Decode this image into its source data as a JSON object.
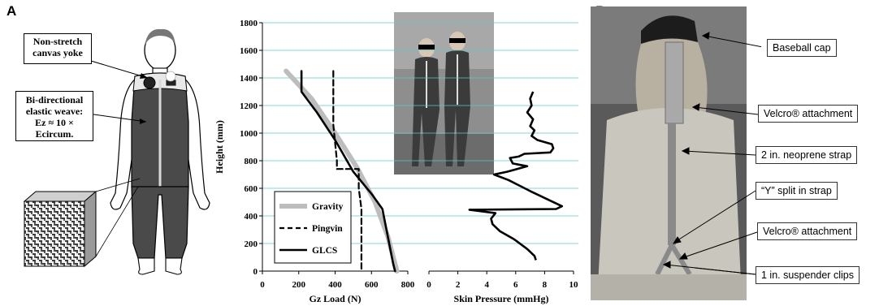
{
  "panels": {
    "a_label": "A",
    "b_label": "B"
  },
  "suit_callouts": {
    "yoke": "Non-stretch canvas yoke",
    "weave_line1": "Bi-directional",
    "weave_line2": "elastic weave:",
    "weave_formula": "Ez ≈ 10 × Ecircum."
  },
  "harness_callouts": [
    "Baseball cap",
    "Velcro® attachment",
    "2 in. neoprene strap",
    "“Y” split in strap",
    "Velcro® attachment",
    "1 in. suspender clips"
  ],
  "chart_data": [
    {
      "type": "line",
      "xlabel": "Gz Load (N)",
      "ylabel": "Height (mm)",
      "xlim": [
        0,
        800
      ],
      "ylim": [
        0,
        1800
      ],
      "xticks": [
        "0",
        "200",
        "400",
        "600",
        "800"
      ],
      "yticks": [
        "0",
        "200",
        "400",
        "600",
        "800",
        "1000",
        "1200",
        "1400",
        "1600",
        "1800"
      ],
      "grid": "horizontal",
      "legend_position": "bottom-left",
      "series": [
        {
          "name": "Gravity",
          "color": "#bdbdbd",
          "style": "solid-thick",
          "x": [
            130,
            270,
            400,
            520,
            620,
            690,
            720,
            740
          ],
          "y": [
            1450,
            1250,
            1000,
            750,
            500,
            250,
            100,
            0
          ]
        },
        {
          "name": "Pingvin",
          "color": "#000000",
          "style": "dashed",
          "x": [
            390,
            390,
            410,
            410,
            530,
            530,
            545,
            545
          ],
          "y": [
            1450,
            1060,
            800,
            740,
            740,
            600,
            450,
            0
          ]
        },
        {
          "name": "GLCS",
          "color": "#000000",
          "style": "solid",
          "x": [
            215,
            215,
            300,
            400,
            500,
            600,
            660,
            720,
            730
          ],
          "y": [
            1450,
            1300,
            1150,
            950,
            720,
            560,
            450,
            50,
            0
          ]
        }
      ]
    },
    {
      "type": "line",
      "xlabel": "Skin Pressure (mmHg)",
      "xlim": [
        0,
        10
      ],
      "ylim": [
        0,
        1800
      ],
      "xticks": [
        "0",
        "2",
        "4",
        "6",
        "8",
        "10"
      ],
      "series": [
        {
          "name": "",
          "color": "#000000",
          "x": [
            7.2,
            7.0,
            7.1,
            6.8,
            7.2,
            7.0,
            7.3,
            7.1,
            7.5,
            8.5,
            8.6,
            8.4,
            6.6,
            6.2,
            5.6,
            5.8,
            6.8,
            5.4,
            4.5,
            5.5,
            7.0,
            9.2,
            8.8,
            2.8,
            4.6,
            4.3,
            4.4,
            4.9,
            5.9,
            6.8,
            7.3,
            7.4
          ],
          "y": [
            1300,
            1250,
            1200,
            1150,
            1100,
            1050,
            1020,
            980,
            950,
            920,
            890,
            860,
            850,
            830,
            820,
            780,
            760,
            720,
            700,
            660,
            580,
            470,
            450,
            445,
            420,
            380,
            340,
            290,
            230,
            160,
            110,
            80
          ]
        }
      ]
    }
  ]
}
